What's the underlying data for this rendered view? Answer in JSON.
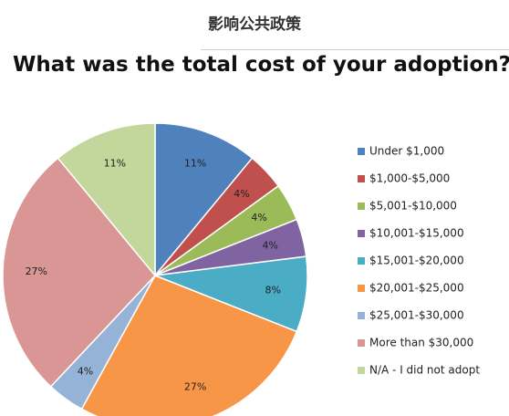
{
  "header": {
    "title": "影响公共政策"
  },
  "chart_data": {
    "type": "pie",
    "title": "What was the total cost of your adoption?",
    "slices": [
      {
        "label": "Under $1,000",
        "value": 11,
        "display": "11%",
        "color": "#4f81bd"
      },
      {
        "label": "$1,000-$5,000",
        "value": 4,
        "display": "4%",
        "color": "#c0504d"
      },
      {
        "label": "$5,001-$10,000",
        "value": 4,
        "display": "4%",
        "color": "#9bbb59"
      },
      {
        "label": "$10,001-$15,000",
        "value": 4,
        "display": "4%",
        "color": "#8064a2"
      },
      {
        "label": "$15,001-$20,000",
        "value": 8,
        "display": "8%",
        "color": "#4bacc6"
      },
      {
        "label": "$20,001-$25,000",
        "value": 27,
        "display": "27%",
        "color": "#f79646"
      },
      {
        "label": "$25,001-$30,000",
        "value": 4,
        "display": "4%",
        "color": "#95b3d7"
      },
      {
        "label": "More than $30,000",
        "value": 27,
        "display": "27%",
        "color": "#d99694"
      },
      {
        "label": "N/A - I did not adopt",
        "value": 11,
        "display": "11%",
        "color": "#c3d69b"
      }
    ],
    "legend_position": "right"
  }
}
